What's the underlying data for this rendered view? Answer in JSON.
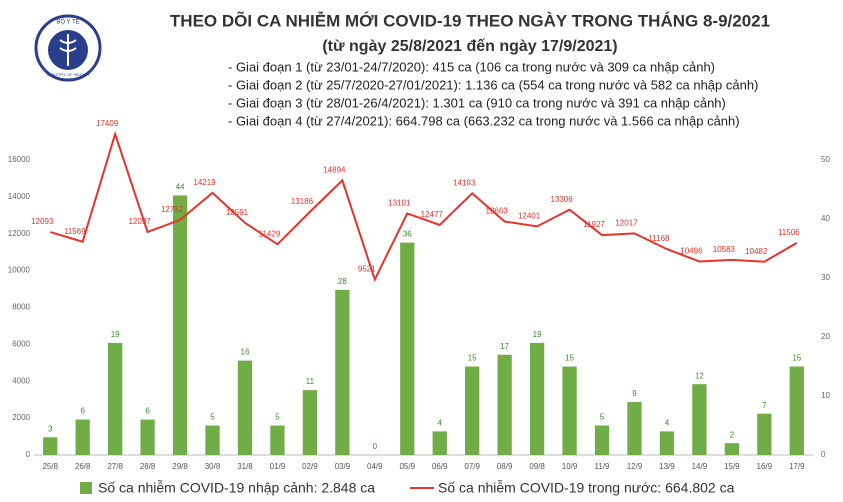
{
  "logo": {
    "top": "BỘ Y TẾ",
    "bottom": "MINISTRY OF HEALTH"
  },
  "chart_data": {
    "type": "bar-line",
    "title": "THEO DÕI CA NHIỄM MỚI COVID-19 THEO NGÀY TRONG THÁNG 8-9/2021",
    "subtitle": "(từ ngày 25/8/2021 đến ngày 17/9/2021)",
    "notes": [
      "- Giai đoạn 1 (từ 23/01-24/7/2020): 415 ca (106 ca trong nước và 309 ca nhập cảnh)",
      "- Giai đoạn 2 (từ 25/7/2020-27/01/2021): 1.136 ca (554 ca trong nước và 582 ca nhập cảnh)",
      "- Giai đoạn 3 (từ 28/01-26/4/2021): 1.301 ca (910 ca trong nước và 391 ca nhập cảnh)",
      "- Giai đoạn 4 (từ 27/4/2021): 664.798 ca (663.232 ca trong nước và 1.566 ca nhập cảnh)"
    ],
    "categories": [
      "25/8",
      "26/8",
      "27/8",
      "28/8",
      "29/8",
      "30/8",
      "31/8",
      "01/9",
      "02/9",
      "03/9",
      "04/9",
      "05/9",
      "06/9",
      "07/9",
      "08/9",
      "09/8",
      "10/9",
      "11/9",
      "12/9",
      "13/9",
      "14/9",
      "15/9",
      "16/9",
      "17/9"
    ],
    "series": [
      {
        "name": "Số ca nhiễm COVID-19 nhập cảnh: 2.848 ca",
        "type": "bar",
        "axis": "y2",
        "color": "#70ad47",
        "values": [
          3,
          6,
          19,
          6,
          44,
          5,
          16,
          5,
          11,
          28,
          0,
          36,
          4,
          15,
          17,
          19,
          15,
          5,
          9,
          4,
          12,
          2,
          7,
          15
        ]
      },
      {
        "name": "Số ca nhiễm COVID-19 trong nước: 664.802 ca",
        "type": "line",
        "color": "#e8322b",
        "values": [
          12093,
          11569,
          17409,
          12097,
          12752,
          14219,
          12591,
          11429,
          13186,
          14894,
          9521,
          13101,
          12477,
          14193,
          12663,
          12401,
          13306,
          11927,
          12017,
          11168,
          10496,
          10583,
          10482,
          11506
        ]
      }
    ],
    "ylim": [
      0,
      16000
    ],
    "yticks": [
      0,
      2000,
      4000,
      6000,
      8000,
      10000,
      12000,
      14000,
      16000
    ],
    "y2lim": [
      0,
      50
    ],
    "y2ticks": [
      0,
      10,
      20,
      30,
      40,
      50
    ],
    "grid": false
  }
}
